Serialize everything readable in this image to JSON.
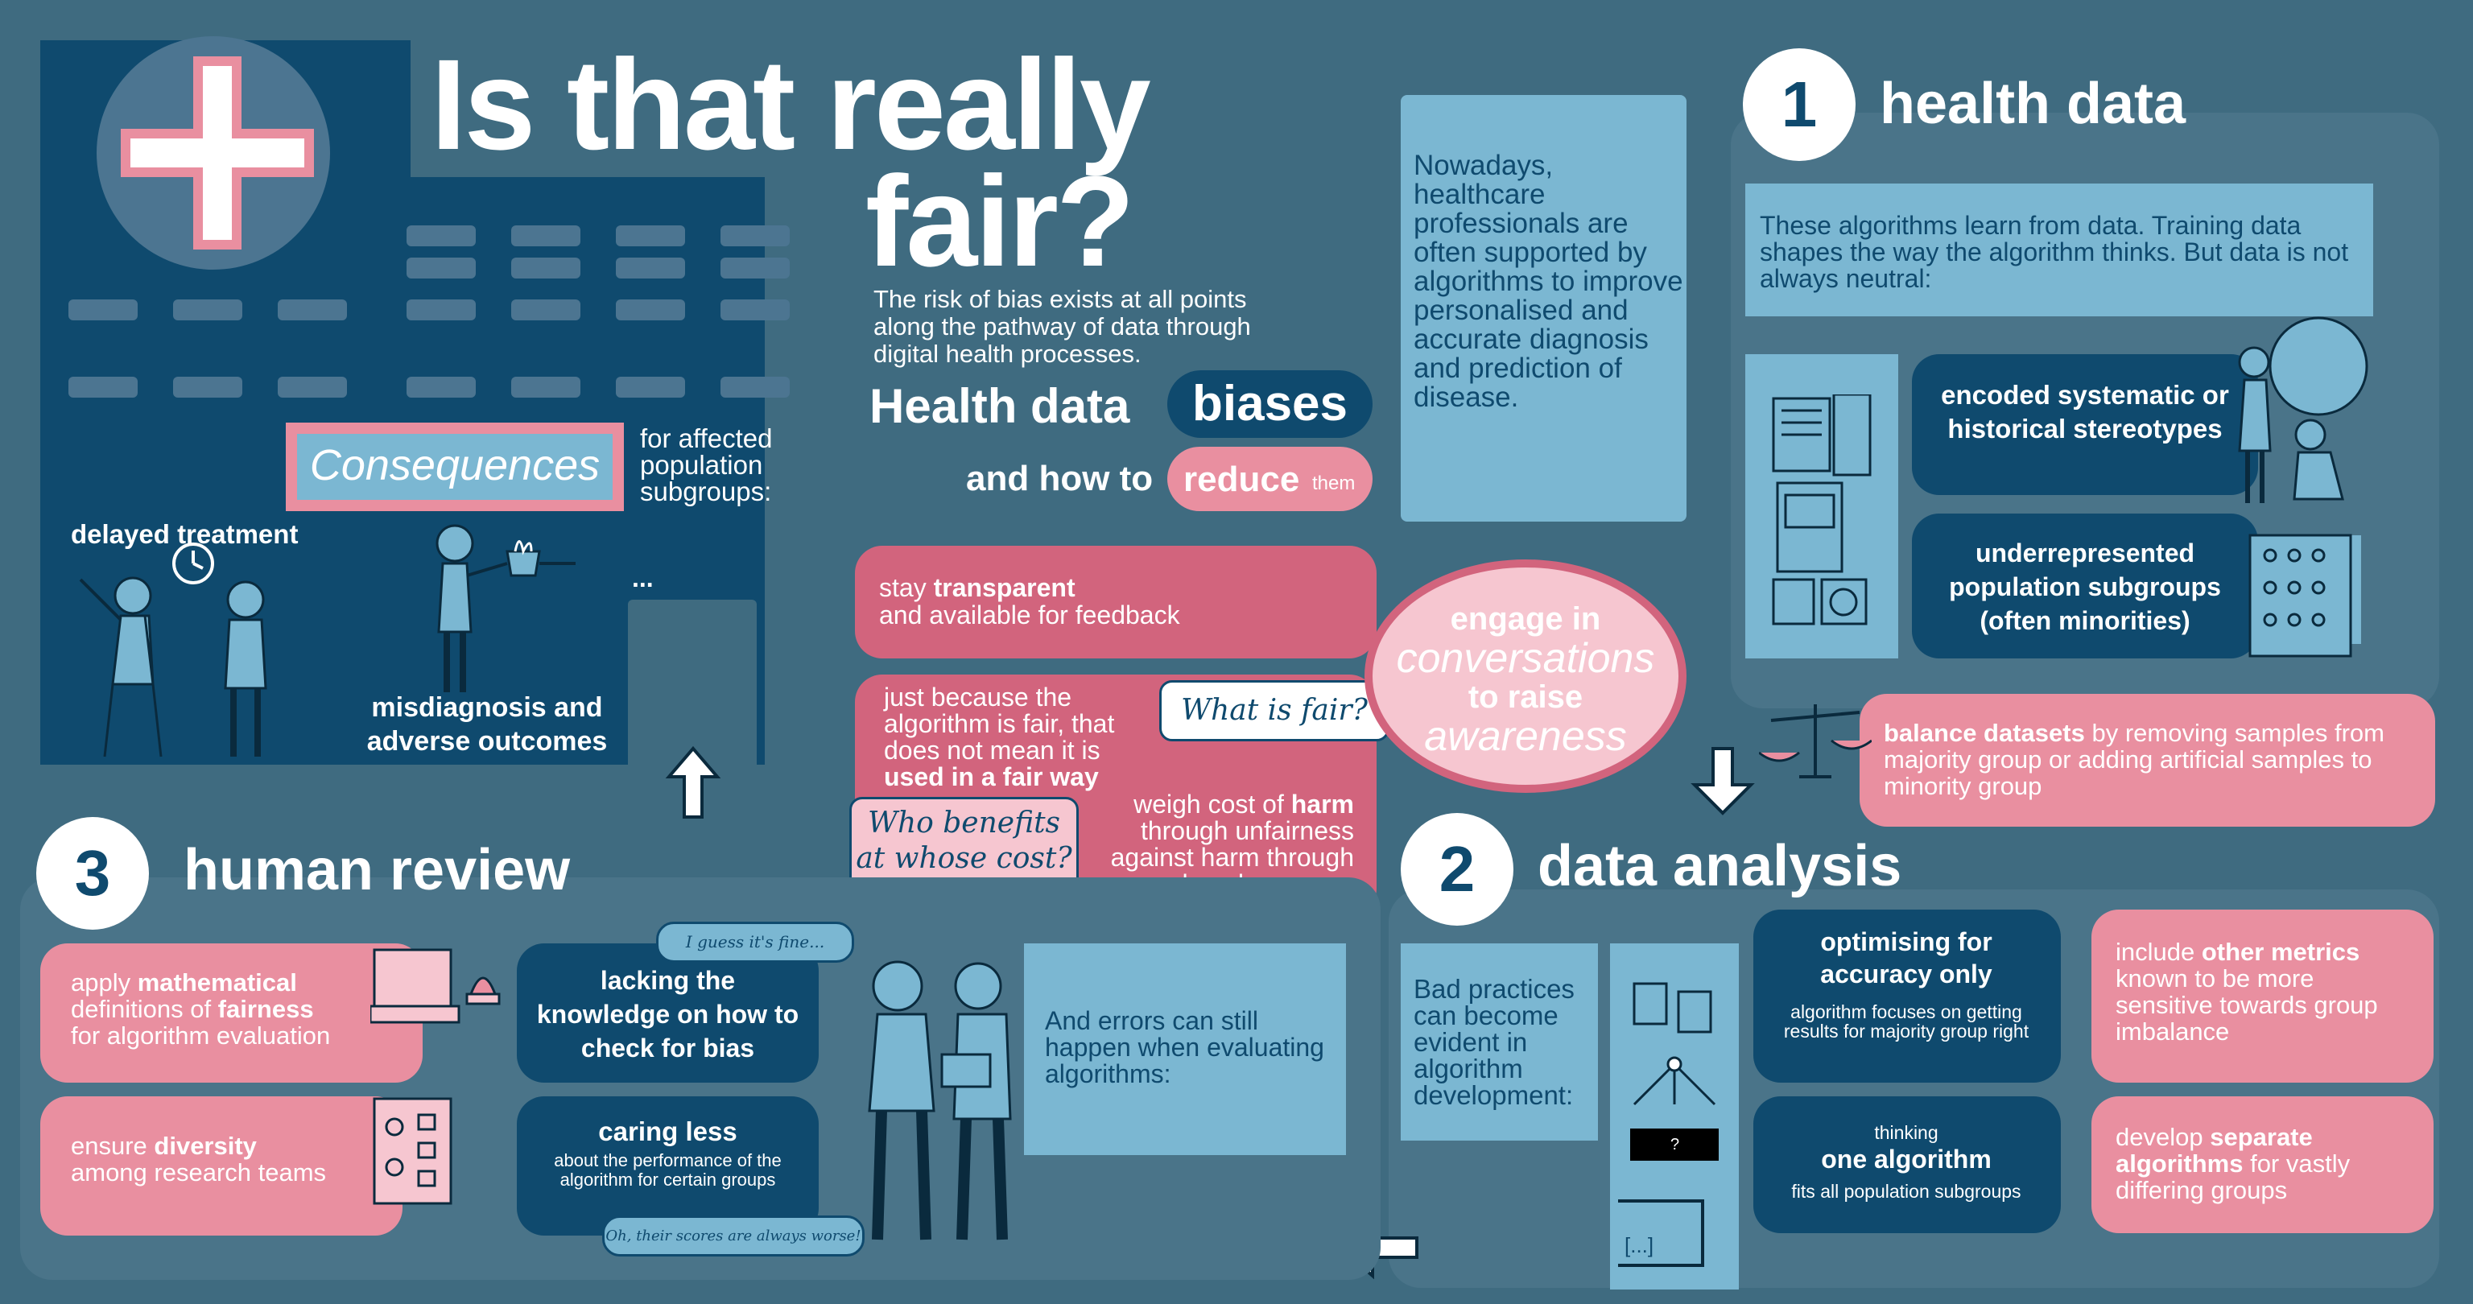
{
  "title": {
    "line1": "Is that really",
    "line2": "fair?"
  },
  "intro": "The risk of bias exists at all points along the pathway of data through digital health processes.",
  "subtitle": {
    "part1": "Health data",
    "part2": "biases",
    "part3": "and how to",
    "part4": "reduce",
    "part5": "them"
  },
  "healthcare_note": "Nowadays, healthcare professionals are often supported by algorithms to improve personalised and accurate diagnosis and prediction of disease.",
  "consequences": {
    "label": "Consequences",
    "desc": "for affected population subgroups:",
    "item1": "delayed treatment",
    "item2": "misdiagnosis and adverse outcomes",
    "ellipsis": "..."
  },
  "center": {
    "transparent_pre": "stay ",
    "transparent_bold": "transparent",
    "transparent_post": "and available for feedback",
    "fair_pre": "just because the algorithm is fair, that does not mean it is ",
    "fair_bold": "used in a fair way",
    "weigh_pre": "weigh cost of ",
    "weigh_bold": "harm",
    "weigh_post": "through unfairness against harm through reduced accuracy",
    "bubble_fair": "What is fair?",
    "bubble_who": "Who benefits at whose cost?",
    "engage1": "engage in",
    "engage2": "conversations",
    "engage3": "to raise",
    "engage4": "awareness"
  },
  "section1": {
    "num": "1",
    "title": "health data",
    "intro": "These algorithms learn from data. Training data shapes the way the algorithm thinks. But data is not always neutral:",
    "box1": "encoded systematic or historical stereotypes",
    "box2": "underrepresented population subgroups (often minorities)",
    "balance_bold": "balance datasets",
    "balance_rest": " by removing samples from majority group or adding artificial samples to minority group"
  },
  "section2": {
    "num": "2",
    "title": "data analysis",
    "intro": "Bad practices can become evident in algorithm development:",
    "box1_title": "optimising for accuracy only",
    "box1_sub": "algorithm focuses on getting results for majority group right",
    "box2_pre": "thinking",
    "box2_title": "one algorithm",
    "box2_sub": "fits all population subgroups",
    "pink1_pre": "include ",
    "pink1_bold": "other metrics",
    "pink1_rest": "known to be more sensitive towards group imbalance",
    "pink2_pre": "develop ",
    "pink2_bold": "separate algorithms",
    "pink2_rest": " for vastly differing groups",
    "screen_text": "[...]"
  },
  "section3": {
    "num": "3",
    "title": "human review",
    "pink1_pre": "apply ",
    "pink1_bold": "mathematical",
    "pink1_mid": "definitions of ",
    "pink1_bold2": "fairness",
    "pink1_rest": "for algorithm evaluation",
    "pink2_pre": "ensure ",
    "pink2_bold": "diversity",
    "pink2_rest": "among research teams",
    "dark1": "lacking the knowledge on how to check for bias",
    "dark2_title": "caring less",
    "dark2_sub": "about the performance of the algorithm for certain groups",
    "light": "And errors can still happen when evaluating algorithms:",
    "bubble1": "I guess it's fine...",
    "bubble2": "Oh, their scores are always worse!"
  },
  "colors": {
    "background": "#3f6b80",
    "dark": "#0f4a6e",
    "pink": "#e98fa0",
    "light": "#7bb7d2",
    "panel": "#4a7489"
  }
}
